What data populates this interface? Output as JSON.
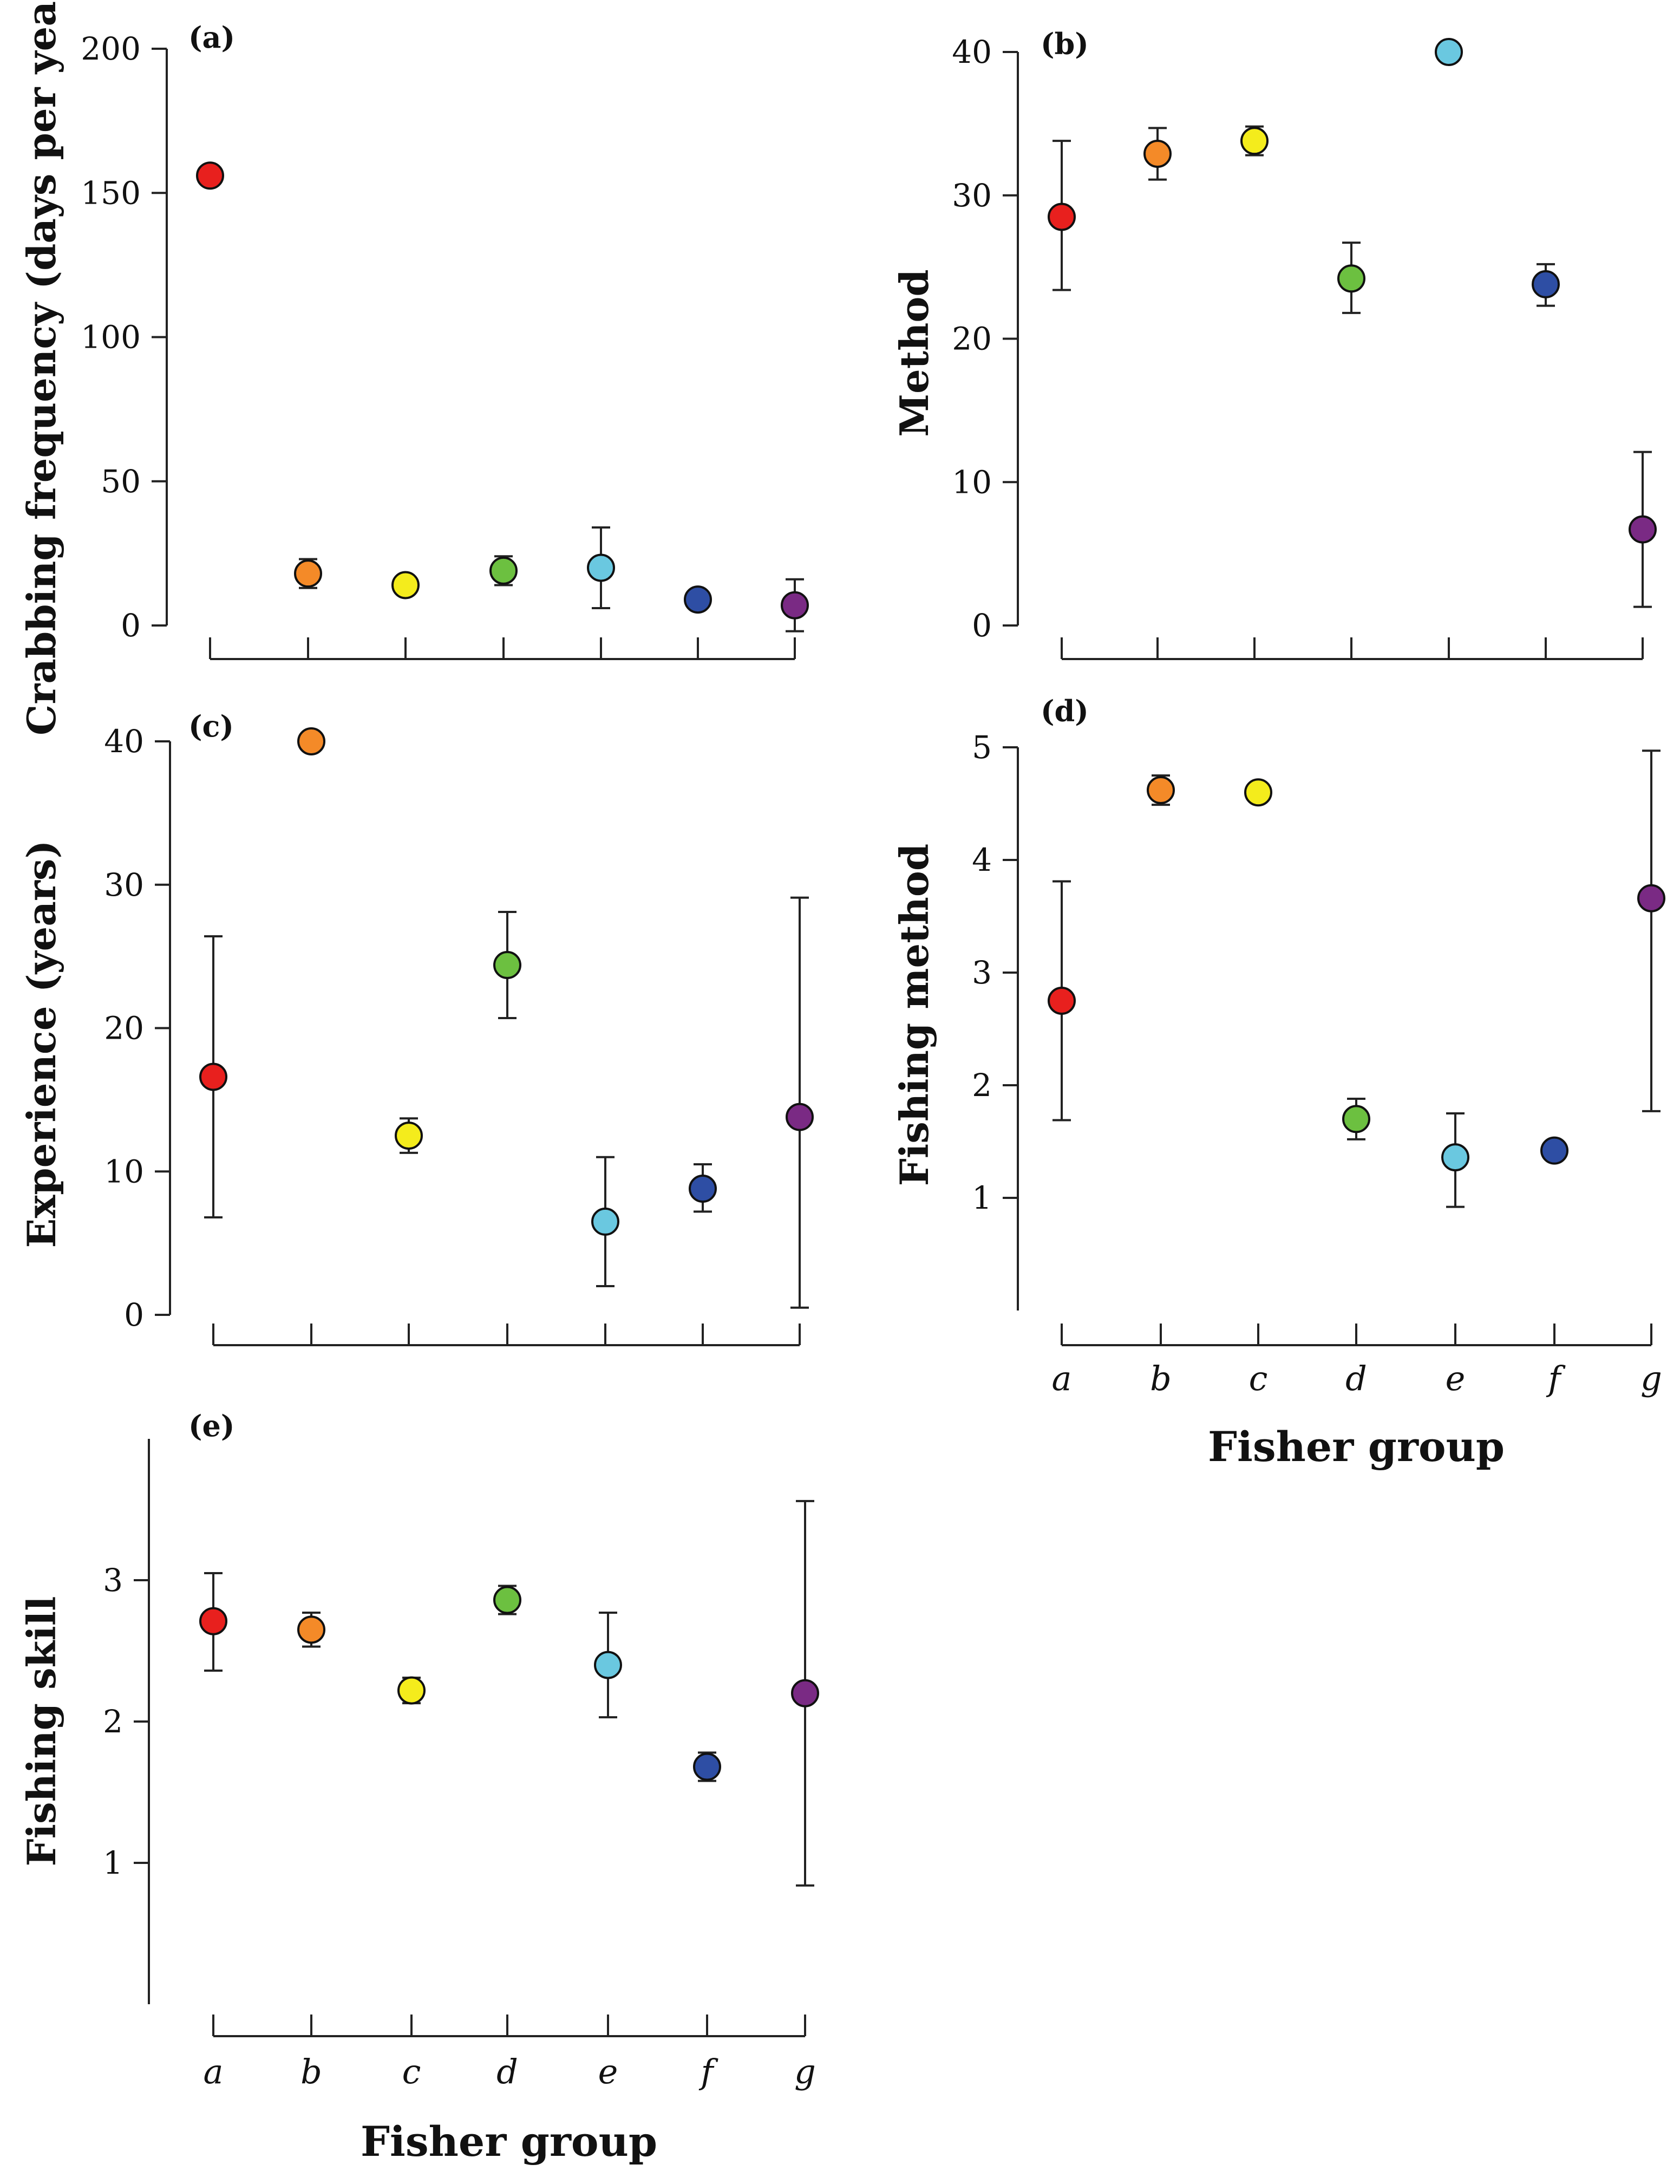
{
  "figure": {
    "group_colors": [
      "#e8201e",
      "#f48a28",
      "#f4ec1c",
      "#6cc040",
      "#6ac8e0",
      "#2e4ea4",
      "#7a2a84"
    ],
    "error_bar_color": "#222222",
    "point_outline_color": "#111111"
  },
  "chart_data": [
    {
      "id": "a",
      "type": "scatter",
      "panel_label": "(a)",
      "ylabel": "Crabbing frequency (days per year)",
      "xlabel": "",
      "ylim": [
        0,
        200
      ],
      "yticks": [
        0,
        50,
        100,
        150,
        200
      ],
      "categories": [
        "a",
        "b",
        "c",
        "d",
        "e",
        "f",
        "g"
      ],
      "show_category_labels": false,
      "values": [
        156,
        18,
        14,
        19,
        20,
        9,
        7
      ],
      "error_low": [
        156,
        13,
        14,
        14,
        6,
        9,
        -2
      ],
      "error_high": [
        156,
        23,
        14,
        24,
        34,
        9,
        16
      ]
    },
    {
      "id": "b",
      "type": "scatter",
      "panel_label": "(b)",
      "ylabel": "Method",
      "xlabel": "",
      "ylim": [
        0,
        40
      ],
      "yticks": [
        0,
        10,
        20,
        30,
        40
      ],
      "categories": [
        "a",
        "b",
        "c",
        "d",
        "e",
        "f",
        "g"
      ],
      "show_category_labels": false,
      "values": [
        28.5,
        32.9,
        33.8,
        24.2,
        40,
        23.8,
        6.7
      ],
      "error_low": [
        23.4,
        31.1,
        32.8,
        21.8,
        40,
        22.3,
        1.3
      ],
      "error_high": [
        33.8,
        34.7,
        34.8,
        26.7,
        40,
        25.2,
        12.1
      ]
    },
    {
      "id": "c",
      "type": "scatter",
      "panel_label": "(c)",
      "ylabel": "Experience (years)",
      "xlabel": "",
      "ylim": [
        0,
        40
      ],
      "yticks": [
        0,
        10,
        20,
        30,
        40
      ],
      "categories": [
        "a",
        "b",
        "c",
        "d",
        "e",
        "f",
        "g"
      ],
      "show_category_labels": false,
      "values": [
        16.6,
        40,
        12.5,
        24.4,
        6.5,
        8.8,
        13.8
      ],
      "error_low": [
        6.8,
        40,
        11.3,
        20.7,
        2.0,
        7.2,
        0.5
      ],
      "error_high": [
        26.4,
        40,
        13.7,
        28.1,
        11.0,
        10.5,
        29.1
      ]
    },
    {
      "id": "d",
      "type": "scatter",
      "panel_label": "(d)",
      "ylabel": "Fishing method",
      "xlabel": "Fisher group",
      "ylim": [
        0,
        5
      ],
      "yticks": [
        1,
        2,
        3,
        4,
        5
      ],
      "categories": [
        "a",
        "b",
        "c",
        "d",
        "e",
        "f",
        "g"
      ],
      "show_category_labels": true,
      "values": [
        2.75,
        4.62,
        4.6,
        1.7,
        1.36,
        1.42,
        3.66
      ],
      "error_low": [
        1.69,
        4.49,
        4.6,
        1.52,
        0.92,
        1.42,
        1.77
      ],
      "error_high": [
        3.81,
        4.75,
        4.6,
        1.88,
        1.75,
        1.42,
        4.97
      ]
    },
    {
      "id": "e",
      "type": "scatter",
      "panel_label": "(e)",
      "ylabel": "Fishing skill",
      "xlabel": "Fisher group",
      "ylim": [
        0,
        4
      ],
      "yticks": [
        1,
        2,
        3
      ],
      "categories": [
        "a",
        "b",
        "c",
        "d",
        "e",
        "f",
        "g"
      ],
      "show_category_labels": true,
      "values": [
        2.71,
        2.65,
        2.22,
        2.86,
        2.4,
        1.68,
        2.2
      ],
      "error_low": [
        2.36,
        2.53,
        2.13,
        2.76,
        2.03,
        1.58,
        0.84
      ],
      "error_high": [
        3.05,
        2.77,
        2.31,
        2.96,
        2.77,
        1.78,
        3.56
      ]
    }
  ]
}
